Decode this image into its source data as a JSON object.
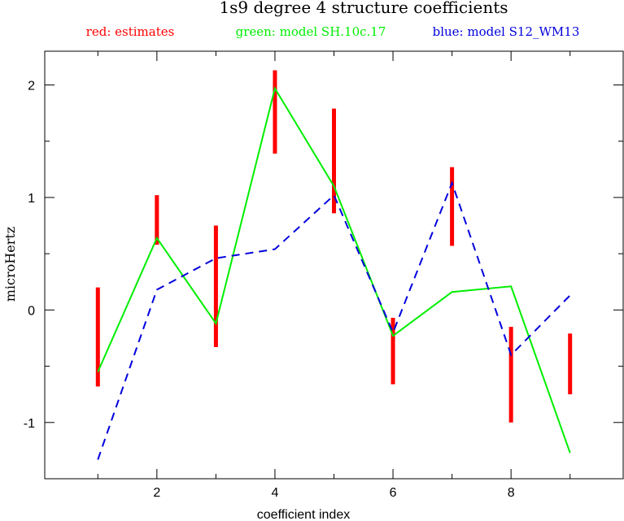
{
  "chart_data": {
    "type": "line",
    "title": "1s9 degree 4 structure coefficients",
    "xlabel": "coefficient index",
    "ylabel": "microHertz",
    "xlim": [
      0.1,
      9.9
    ],
    "ylim": [
      -1.5,
      2.3
    ],
    "xticks": [
      2,
      4,
      6,
      8
    ],
    "yticks": [
      -1,
      0,
      1,
      2
    ],
    "legend": [
      {
        "text": "red: estimates",
        "color": "#ff0000"
      },
      {
        "text": "green: model SH.10c.17",
        "color": "#00ee00"
      },
      {
        "text": "blue: model S12_WM13",
        "color": "#0000dd"
      }
    ],
    "x": [
      1,
      2,
      3,
      4,
      5,
      6,
      7,
      8,
      9
    ],
    "estimates": {
      "color": "#ff0000",
      "low": [
        -0.68,
        0.58,
        -0.33,
        1.39,
        0.86,
        -0.66,
        0.57,
        -1.0,
        -0.75
      ],
      "high": [
        0.2,
        1.02,
        0.75,
        2.13,
        1.79,
        -0.07,
        1.27,
        -0.15,
        -0.21
      ]
    },
    "series": [
      {
        "name": "model SH.10c.17",
        "color": "#00ee00",
        "style": "solid",
        "values": [
          -0.55,
          0.64,
          -0.12,
          1.97,
          1.1,
          -0.23,
          0.16,
          0.21,
          -1.27
        ]
      },
      {
        "name": "model S12_WM13",
        "color": "#0000dd",
        "style": "dashed",
        "values": [
          -1.33,
          0.18,
          0.46,
          0.54,
          1.02,
          -0.2,
          1.13,
          -0.4,
          0.13
        ]
      }
    ]
  }
}
